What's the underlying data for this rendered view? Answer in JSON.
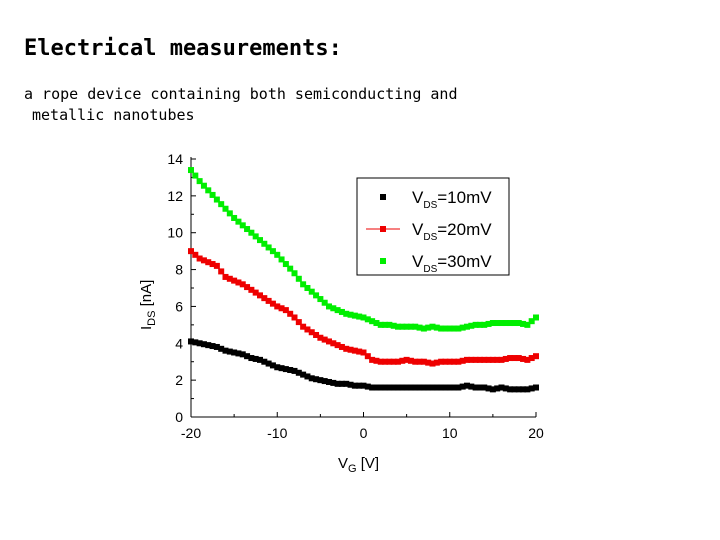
{
  "slide": {
    "title": "Electrical measurements:",
    "subtitle_line1": "a rope device containing both semiconducting and",
    "subtitle_line2": "metallic nanotubes"
  },
  "chart_data": {
    "type": "scatter",
    "xlabel_main": "V",
    "xlabel_sub": "G",
    "xlabel_unit": " [V]",
    "ylabel_main": "I",
    "ylabel_sub": "DS",
    "ylabel_unit": " [nA]",
    "xlim": [
      -20,
      20
    ],
    "ylim": [
      0,
      14
    ],
    "xticks": [
      -20,
      -10,
      0,
      10,
      20
    ],
    "yticks": [
      0,
      2,
      4,
      6,
      8,
      10,
      12,
      14
    ],
    "legend_position": "top-right",
    "series": [
      {
        "name_main": "V",
        "name_sub": "DS",
        "name_value": "=10mV",
        "color": "#000000",
        "x": [
          -20,
          -19,
          -18,
          -17,
          -16,
          -15,
          -14,
          -13,
          -12,
          -11,
          -10,
          -9,
          -8,
          -7,
          -6,
          -5,
          -4,
          -3,
          -2,
          -1,
          0,
          1,
          2,
          3,
          4,
          5,
          6,
          7,
          8,
          9,
          10,
          11,
          12,
          13,
          14,
          15,
          16,
          17,
          18,
          19,
          20
        ],
        "y": [
          4.1,
          4.0,
          3.9,
          3.8,
          3.6,
          3.5,
          3.4,
          3.2,
          3.1,
          2.9,
          2.7,
          2.6,
          2.5,
          2.3,
          2.1,
          2.0,
          1.9,
          1.8,
          1.8,
          1.7,
          1.7,
          1.6,
          1.6,
          1.6,
          1.6,
          1.6,
          1.6,
          1.6,
          1.6,
          1.6,
          1.6,
          1.6,
          1.7,
          1.6,
          1.6,
          1.5,
          1.6,
          1.5,
          1.5,
          1.5,
          1.6
        ]
      },
      {
        "name_main": "V",
        "name_sub": "DS",
        "name_value": "=20mV",
        "color": "#ee0000",
        "x": [
          -20,
          -19,
          -18,
          -17,
          -16,
          -15,
          -14,
          -13,
          -12,
          -11,
          -10,
          -9,
          -8,
          -7,
          -6,
          -5,
          -4,
          -3,
          -2,
          -1,
          0,
          1,
          2,
          3,
          4,
          5,
          6,
          7,
          8,
          9,
          10,
          11,
          12,
          13,
          14,
          15,
          16,
          17,
          18,
          19,
          20
        ],
        "y": [
          9.0,
          8.6,
          8.4,
          8.2,
          7.6,
          7.4,
          7.2,
          6.9,
          6.6,
          6.3,
          6.0,
          5.8,
          5.4,
          4.9,
          4.6,
          4.3,
          4.1,
          3.9,
          3.7,
          3.6,
          3.5,
          3.1,
          3.0,
          3.0,
          3.0,
          3.1,
          3.0,
          3.0,
          2.9,
          3.0,
          3.0,
          3.0,
          3.1,
          3.1,
          3.1,
          3.1,
          3.1,
          3.2,
          3.2,
          3.1,
          3.3
        ]
      },
      {
        "name_main": "V",
        "name_sub": "DS",
        "name_value": "=30mV",
        "color": "#00ee00",
        "x": [
          -20,
          -19,
          -18,
          -17,
          -16,
          -15,
          -14,
          -13,
          -12,
          -11,
          -10,
          -9,
          -8,
          -7,
          -6,
          -5,
          -4,
          -3,
          -2,
          -1,
          0,
          1,
          2,
          3,
          4,
          5,
          6,
          7,
          8,
          9,
          10,
          11,
          12,
          13,
          14,
          15,
          16,
          17,
          18,
          19,
          20
        ],
        "y": [
          13.4,
          12.8,
          12.3,
          11.8,
          11.3,
          10.8,
          10.4,
          10.0,
          9.6,
          9.2,
          8.8,
          8.3,
          7.8,
          7.2,
          6.8,
          6.4,
          6.0,
          5.8,
          5.6,
          5.5,
          5.4,
          5.2,
          5.0,
          5.0,
          4.9,
          4.9,
          4.9,
          4.8,
          4.9,
          4.8,
          4.8,
          4.8,
          4.9,
          5.0,
          5.0,
          5.1,
          5.1,
          5.1,
          5.1,
          5.0,
          5.4
        ]
      }
    ]
  }
}
